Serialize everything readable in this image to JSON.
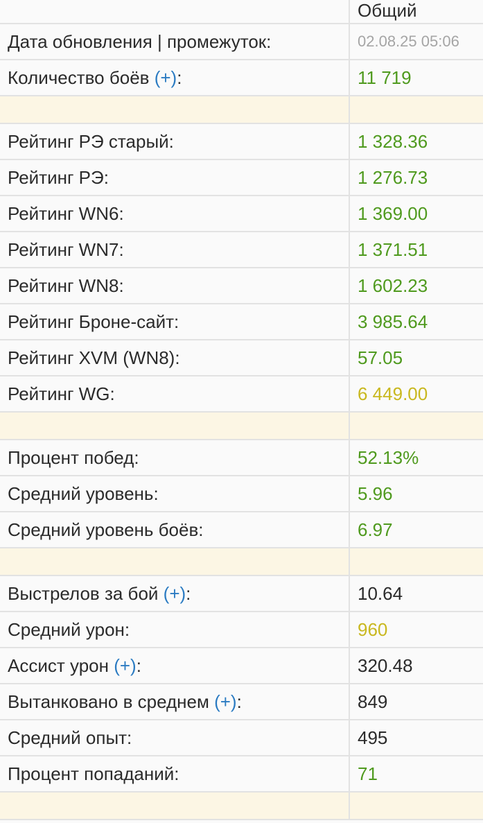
{
  "header": {
    "column": "Общий"
  },
  "rows": [
    {
      "label": "Дата обновления | промежуток:",
      "value": "02.08.25 05:06",
      "color": "gray"
    },
    {
      "label": "Количество боёв ",
      "plus": "(+)",
      "suffix": ":",
      "value": "11 719",
      "color": "green"
    },
    {
      "separator": true
    },
    {
      "label": "Рейтинг РЭ старый:",
      "value": "1 328.36",
      "color": "green"
    },
    {
      "label": "Рейтинг РЭ:",
      "value": "1 276.73",
      "color": "green"
    },
    {
      "label": "Рейтинг WN6:",
      "value": "1 369.00",
      "color": "green"
    },
    {
      "label": "Рейтинг WN7:",
      "value": "1 371.51",
      "color": "green"
    },
    {
      "label": "Рейтинг WN8:",
      "value": "1 602.23",
      "color": "green"
    },
    {
      "label": "Рейтинг Броне-сайт:",
      "value": "3 985.64",
      "color": "green"
    },
    {
      "label": "Рейтинг XVM (WN8):",
      "value": "57.05",
      "color": "green"
    },
    {
      "label": "Рейтинг WG:",
      "value": "6 449.00",
      "color": "yellow"
    },
    {
      "separator": true
    },
    {
      "label": "Процент побед:",
      "value": "52.13%",
      "color": "green"
    },
    {
      "label": "Средний уровень:",
      "value": "5.96",
      "color": "green"
    },
    {
      "label": "Средний уровень боёв:",
      "value": "6.97",
      "color": "green"
    },
    {
      "separator": true
    },
    {
      "label": "Выстрелов за бой ",
      "plus": "(+)",
      "suffix": ":",
      "value": "10.64",
      "color": "plain"
    },
    {
      "label": "Средний урон:",
      "value": "960",
      "color": "yellow"
    },
    {
      "label": "Ассист урон ",
      "plus": "(+)",
      "suffix": ":",
      "value": "320.48",
      "color": "plain"
    },
    {
      "label": "Вытанковано в среднем ",
      "plus": "(+)",
      "suffix": ":",
      "value": "849",
      "color": "plain"
    },
    {
      "label": "Средний опыт:",
      "value": "495",
      "color": "plain"
    },
    {
      "label": "Процент попаданий:",
      "value": "71",
      "color": "green"
    },
    {
      "separator": true
    }
  ],
  "colors": {
    "green": "#4f9a1e",
    "yellow": "#c9b81f",
    "link": "#2b7bc2",
    "separator": "#fcf6e4"
  }
}
